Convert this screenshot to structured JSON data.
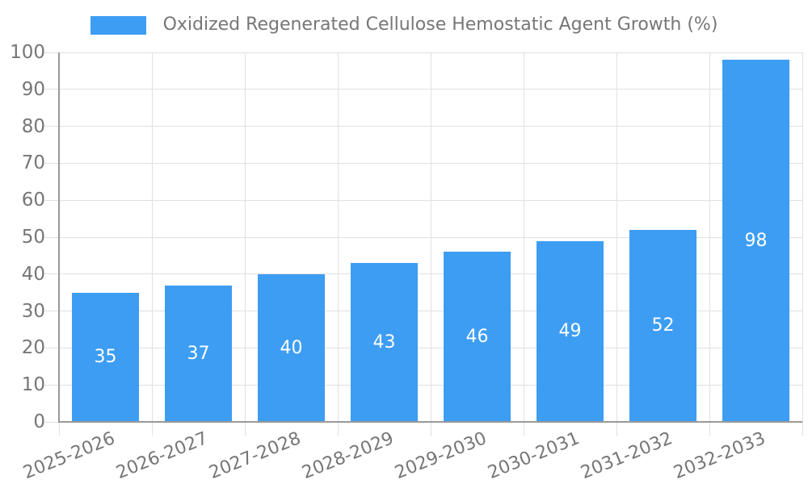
{
  "chart_data": {
    "type": "bar",
    "title": "",
    "legend": "Oxidized Regenerated Cellulose Hemostatic Agent Growth (%)",
    "legend_position": "top-center",
    "categories": [
      "2025-2026",
      "2026-2027",
      "2027-2028",
      "2028-2029",
      "2029-2030",
      "2030-2031",
      "2031-2032",
      "2032-2033"
    ],
    "values": [
      35,
      37,
      40,
      43,
      46,
      49,
      52,
      98
    ],
    "value_labels": [
      "35",
      "37",
      "40",
      "43",
      "46",
      "49",
      "52",
      "98"
    ],
    "value_label_position": "inside-center",
    "xlabel": "",
    "ylabel": "",
    "ylim": [
      0,
      100
    ],
    "yticks": [
      0,
      10,
      20,
      30,
      40,
      50,
      60,
      70,
      80,
      90,
      100
    ],
    "grid": true,
    "x_tick_rotation_deg": -22
  },
  "colors": {
    "bar": "#3d9df3",
    "bar_value_text": "#ffffff",
    "axis_text": "#767676",
    "legend_text": "#767676",
    "grid_line": "#e0e0e0",
    "axis_line": "#999999"
  }
}
